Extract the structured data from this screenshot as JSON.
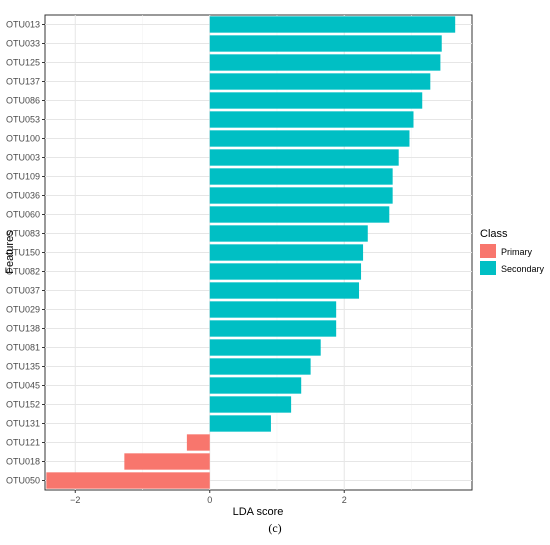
{
  "chart_data": {
    "type": "bar",
    "orientation": "horizontal",
    "xlabel": "LDA score",
    "ylabel": "Features",
    "xlim": [
      -2.45,
      3.9
    ],
    "x_ticks": [
      -2,
      0,
      2
    ],
    "grid": true,
    "legend": {
      "title": "Class",
      "placement": "right",
      "entries": [
        {
          "name": "Primary",
          "color": "#F8766D"
        },
        {
          "name": "Secondary",
          "color": "#00BFC4"
        }
      ]
    },
    "categories": [
      "OTU013",
      "OTU033",
      "OTU125",
      "OTU137",
      "OTU086",
      "OTU053",
      "OTU100",
      "OTU003",
      "OTU109",
      "OTU036",
      "OTU060",
      "OTU083",
      "OTU150",
      "OTU082",
      "OTU037",
      "OTU029",
      "OTU138",
      "OTU081",
      "OTU135",
      "OTU045",
      "OTU152",
      "OTU131",
      "OTU121",
      "OTU018",
      "OTU050"
    ],
    "values": [
      3.65,
      3.45,
      3.43,
      3.28,
      3.16,
      3.03,
      2.97,
      2.81,
      2.72,
      2.72,
      2.67,
      2.35,
      2.28,
      2.25,
      2.22,
      1.88,
      1.88,
      1.65,
      1.5,
      1.36,
      1.21,
      0.91,
      -0.34,
      -1.27,
      -2.43
    ],
    "classes": [
      "Secondary",
      "Secondary",
      "Secondary",
      "Secondary",
      "Secondary",
      "Secondary",
      "Secondary",
      "Secondary",
      "Secondary",
      "Secondary",
      "Secondary",
      "Secondary",
      "Secondary",
      "Secondary",
      "Secondary",
      "Secondary",
      "Secondary",
      "Secondary",
      "Secondary",
      "Secondary",
      "Secondary",
      "Secondary",
      "Primary",
      "Primary",
      "Primary"
    ]
  },
  "caption": "(c)"
}
